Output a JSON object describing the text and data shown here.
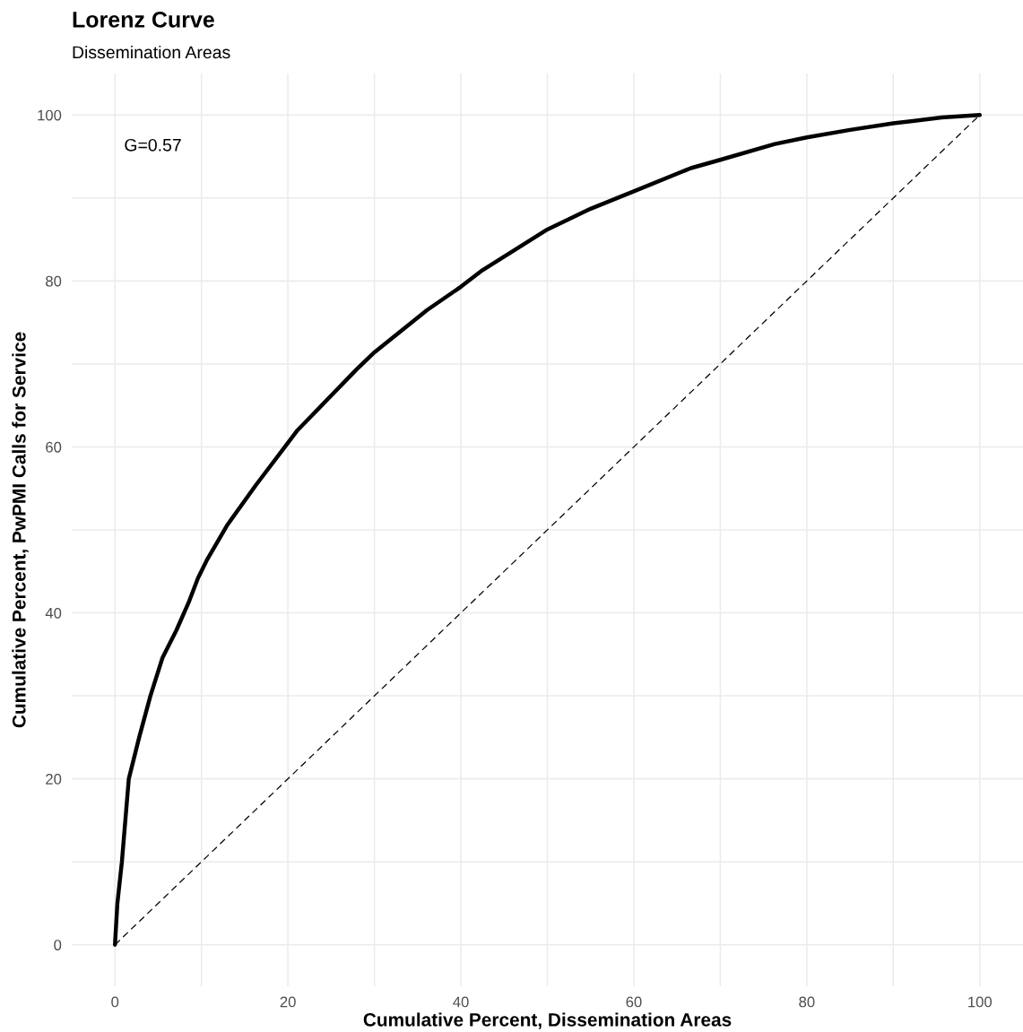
{
  "chart_data": {
    "type": "line",
    "title": "Lorenz Curve",
    "subtitle": "Dissemination Areas",
    "xlabel": "Cumulative Percent, Dissemination Areas",
    "ylabel": "Cumulative Percent, PwPMI Calls for Service",
    "annotations": [
      "G=0.57"
    ],
    "series": [
      {
        "color": "#000000",
        "line_style": "solid",
        "x": [
          0,
          0.28,
          0.8,
          1.2,
          1.6,
          2.8,
          4.1,
          5.5,
          7.1,
          8.5,
          9.6,
          10.6,
          13.0,
          16.3,
          21.1,
          27.9,
          30,
          36.1,
          40,
          42.5,
          50,
          55,
          60,
          66.6,
          70,
          76.3,
          80,
          85,
          90,
          95.6,
          100
        ],
        "values": [
          0,
          5,
          10,
          15,
          20,
          25,
          30,
          34.6,
          37.9,
          41.2,
          44.2,
          46.3,
          50.6,
          55.4,
          62,
          69.3,
          71.4,
          76.5,
          79.3,
          81.3,
          86.2,
          88.7,
          90.8,
          93.6,
          94.6,
          96.5,
          97.3,
          98.2,
          99.0,
          99.7,
          100
        ]
      },
      {
        "color": "#000000",
        "line_style": "dashed",
        "x": [
          0,
          100
        ],
        "values": [
          0,
          100
        ]
      }
    ],
    "xlim": [
      -5,
      105
    ],
    "ylim": [
      -5,
      105
    ],
    "xticks": [
      0,
      {
        "value": 10,
        "label": null
      },
      20,
      {
        "value": 30,
        "label": null
      },
      40,
      {
        "value": 50,
        "label": null
      },
      60,
      {
        "value": 70,
        "label": null
      },
      80,
      {
        "value": 90,
        "label": null
      },
      100
    ],
    "yticks": [
      0,
      {
        "value": 10,
        "label": null
      },
      20,
      {
        "value": 30,
        "label": null
      },
      40,
      {
        "value": 50,
        "label": null
      },
      60,
      {
        "value": 70,
        "label": null
      },
      80,
      {
        "value": 90,
        "label": null
      },
      100
    ],
    "grid": true
  }
}
